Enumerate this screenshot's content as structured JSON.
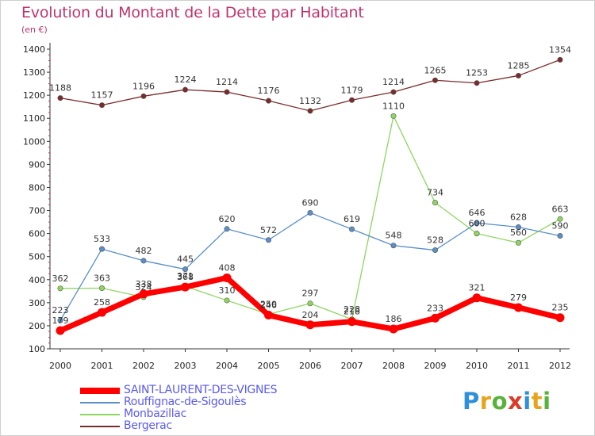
{
  "title": "Evolution du Montant de la Dette par Habitant",
  "subtitle": "(en €)",
  "logo_letters": [
    "P",
    "r",
    "o",
    "x",
    "i",
    "t",
    "i"
  ],
  "chart_data": {
    "type": "line",
    "x": [
      "2000",
      "2001",
      "2002",
      "2003",
      "2004",
      "2005",
      "2006",
      "2007",
      "2008",
      "2009",
      "2010",
      "2011",
      "2012"
    ],
    "ylim": [
      100,
      1400
    ],
    "yticks": [
      100,
      200,
      300,
      400,
      500,
      600,
      700,
      800,
      900,
      1000,
      1100,
      1200,
      1300,
      1400
    ],
    "grid": false,
    "legend_position": "bottom-left",
    "series": [
      {
        "name": "SAINT-LAURENT-DES-VIGNES",
        "color": "#ff0000",
        "values": [
          179,
          258,
          338,
          368,
          408,
          246,
          204,
          218,
          186,
          233,
          321,
          279,
          235
        ]
      },
      {
        "name": "Rouffignac-de-Sigoulès",
        "color": "#5a8fc8",
        "values": [
          223,
          533,
          482,
          445,
          620,
          572,
          690,
          619,
          548,
          528,
          646,
          628,
          590
        ]
      },
      {
        "name": "Monbazillac",
        "color": "#8ed660",
        "values": [
          362,
          363,
          324,
          371,
          310,
          250,
          297,
          228,
          1110,
          734,
          600,
          560,
          663
        ]
      },
      {
        "name": "Bergerac",
        "color": "#7a2b2b",
        "values": [
          1188,
          1157,
          1196,
          1224,
          1214,
          1176,
          1132,
          1179,
          1214,
          1265,
          1253,
          1285,
          1354
        ]
      }
    ]
  }
}
